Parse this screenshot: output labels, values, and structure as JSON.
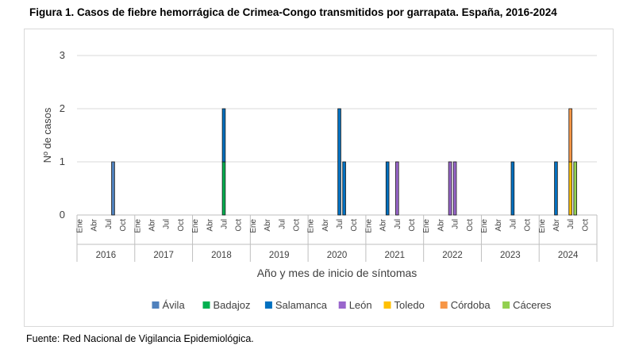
{
  "title": "Figura 1. Casos de fiebre hemorrágica de Crimea-Congo transmitidos por garrapata. España, 2016-2024",
  "source": "Fuente: Red Nacional de Vigilancia Epidemiológica.",
  "chart_data": {
    "type": "bar",
    "stacked": true,
    "xlabel": "Año y mes de inicio de síntomas",
    "ylabel": "Nº de casos",
    "ylim": [
      0,
      3
    ],
    "yticks": [
      0,
      1,
      2,
      3
    ],
    "grid": true,
    "legend_position": "bottom",
    "years": [
      "2016",
      "2017",
      "2018",
      "2019",
      "2020",
      "2021",
      "2022",
      "2023",
      "2024"
    ],
    "month_labels": [
      "Ene",
      "Abr",
      "Jul",
      "Oct"
    ],
    "months_per_year": 12,
    "series": [
      {
        "name": "Ávila",
        "color": "#4f81bd"
      },
      {
        "name": "Badajoz",
        "color": "#00b050"
      },
      {
        "name": "Salamanca",
        "color": "#0070c0"
      },
      {
        "name": "León",
        "color": "#9966cc"
      },
      {
        "name": "Toledo",
        "color": "#ffc000"
      },
      {
        "name": "Córdoba",
        "color": "#f79646"
      },
      {
        "name": "Cáceres",
        "color": "#92d050"
      }
    ],
    "data": [
      {
        "year": "2016",
        "month": 8,
        "values": {
          "Ávila": 1
        }
      },
      {
        "year": "2018",
        "month": 7,
        "values": {
          "Badajoz": 1,
          "Salamanca": 1
        }
      },
      {
        "year": "2020",
        "month": 7,
        "values": {
          "Salamanca": 2
        }
      },
      {
        "year": "2020",
        "month": 8,
        "values": {
          "Salamanca": 1
        }
      },
      {
        "year": "2021",
        "month": 5,
        "values": {
          "Salamanca": 1
        }
      },
      {
        "year": "2021",
        "month": 7,
        "values": {
          "León": 1
        }
      },
      {
        "year": "2022",
        "month": 6,
        "values": {
          "León": 1
        }
      },
      {
        "year": "2022",
        "month": 7,
        "values": {
          "León": 1
        }
      },
      {
        "year": "2023",
        "month": 7,
        "values": {
          "Salamanca": 1
        }
      },
      {
        "year": "2024",
        "month": 4,
        "values": {
          "Salamanca": 1
        }
      },
      {
        "year": "2024",
        "month": 7,
        "values": {
          "Toledo": 1,
          "Córdoba": 1
        }
      },
      {
        "year": "2024",
        "month": 8,
        "values": {
          "Cáceres": 1
        }
      }
    ]
  }
}
